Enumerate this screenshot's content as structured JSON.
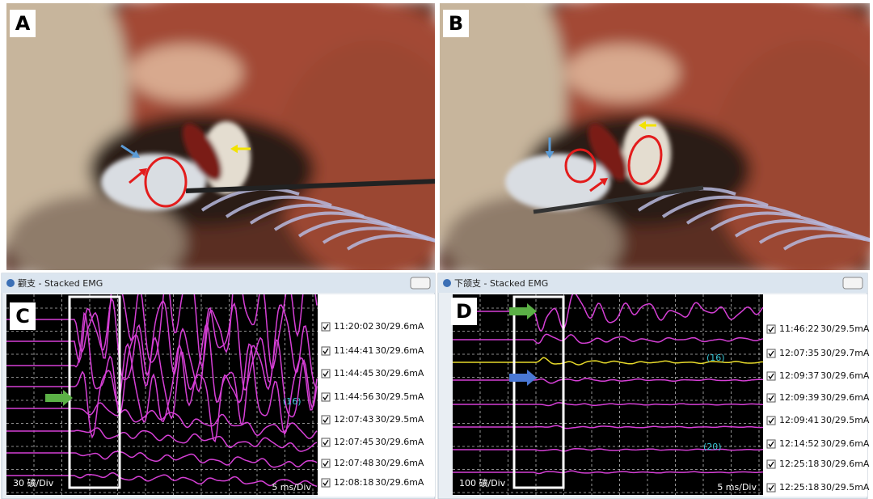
{
  "panels": [
    {
      "label": "A"
    },
    {
      "label": "B"
    },
    {
      "label": "C",
      "window_title": "颧支 - Stacked EMG",
      "amplitude_scale": "30 礦/Div",
      "time_scale": "5 ms/Div",
      "channel_tags": [
        "(16)"
      ],
      "traces": [
        {
          "time": "11:20:02",
          "stim": "30/29.6mA"
        },
        {
          "time": "11:44:41",
          "stim": "30/29.6mA"
        },
        {
          "time": "11:44:45",
          "stim": "30/29.6mA"
        },
        {
          "time": "11:44:56",
          "stim": "30/29.5mA"
        },
        {
          "time": "12:07:43",
          "stim": "30/29.5mA"
        },
        {
          "time": "12:07:45",
          "stim": "30/29.6mA"
        },
        {
          "time": "12:07:48",
          "stim": "30/29.6mA"
        },
        {
          "time": "12:08:18",
          "stim": "30/29.6mA"
        }
      ]
    },
    {
      "label": "D",
      "window_title": "下颌支 - Stacked EMG",
      "amplitude_scale": "100 礦/Div",
      "time_scale": "5 ms/Div",
      "channel_tags": [
        "(16)",
        "(20)"
      ],
      "traces": [
        {
          "time": "11:46:22",
          "stim": "30/29.5mA"
        },
        {
          "time": "12:07:35",
          "stim": "30/29.7mA"
        },
        {
          "time": "12:09:37",
          "stim": "30/29.6mA"
        },
        {
          "time": "12:09:39",
          "stim": "30/29.6mA"
        },
        {
          "time": "12:09:41",
          "stim": "30/29.5mA"
        },
        {
          "time": "12:14:52",
          "stim": "30/29.6mA"
        },
        {
          "time": "12:25:18",
          "stim": "30/29.6mA"
        },
        {
          "time": "12:25:18",
          "stim": "30/29.5mA"
        }
      ]
    }
  ]
}
